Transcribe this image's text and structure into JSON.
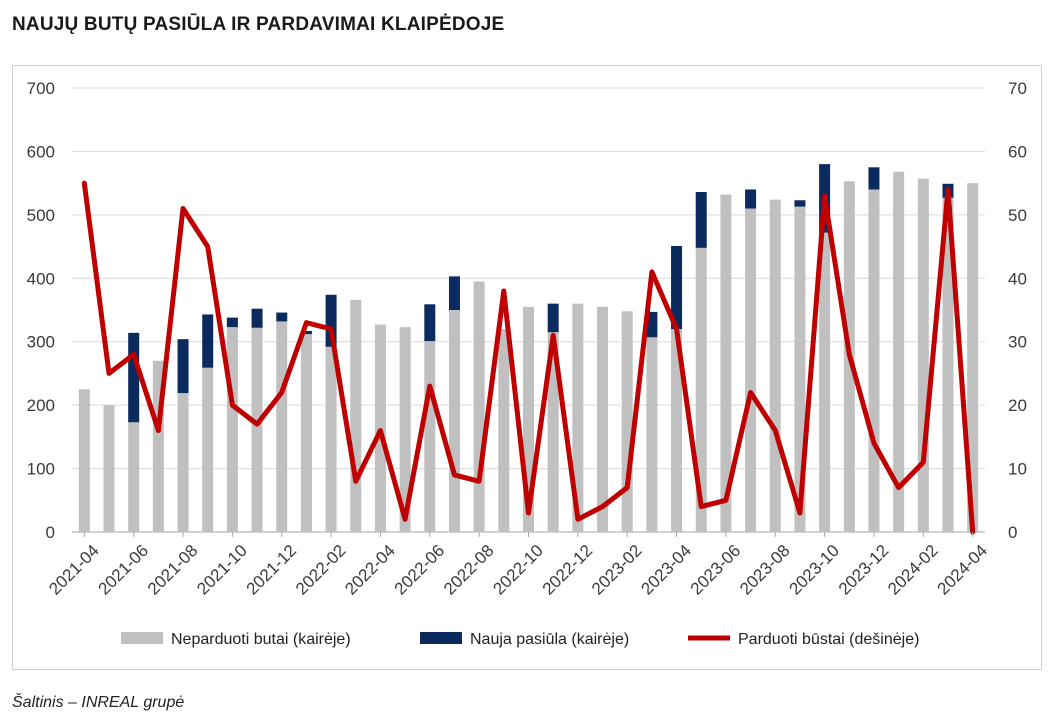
{
  "title": "NAUJŲ BUTŲ PASIŪLA IR PARDAVIMAI KLAIPĖDOJE",
  "source": "Šaltinis – INREAL grupė",
  "colors": {
    "unsold": "#c0c0c0",
    "new_supply": "#0b2a5e",
    "sold": "#c00000",
    "grid": "#d9d9d9"
  },
  "chart_data": {
    "type": "bar",
    "stacked": true,
    "categories": [
      "2021-04",
      "2021-05",
      "2021-06",
      "2021-07",
      "2021-08",
      "2021-09",
      "2021-10",
      "2021-11",
      "2021-12",
      "2022-01",
      "2022-02",
      "2022-03",
      "2022-04",
      "2022-05",
      "2022-06",
      "2022-07",
      "2022-08",
      "2022-09",
      "2022-10",
      "2022-11",
      "2022-12",
      "2023-01",
      "2023-02",
      "2023-03",
      "2023-04",
      "2023-05",
      "2023-06",
      "2023-07",
      "2023-08",
      "2023-09",
      "2023-10",
      "2023-11",
      "2023-12",
      "2024-01",
      "2024-02",
      "2024-03",
      "2024-04"
    ],
    "x_tick_labels": [
      "2021-04",
      "2021-06",
      "2021-08",
      "2021-10",
      "2021-12",
      "2022-02",
      "2022-04",
      "2022-06",
      "2022-08",
      "2022-10",
      "2022-12",
      "2023-02",
      "2023-04",
      "2023-06",
      "2023-08",
      "2023-10",
      "2023-12",
      "2024-02",
      "2024-04"
    ],
    "series": [
      {
        "name": "Neparduoti butai (kairėje)",
        "kind": "bar",
        "axis": "left",
        "values": [
          225,
          200,
          173,
          270,
          219,
          259,
          323,
          322,
          332,
          312,
          292,
          366,
          327,
          323,
          301,
          350,
          395,
          320,
          355,
          315,
          360,
          355,
          348,
          307,
          320,
          448,
          532,
          510,
          524,
          513,
          472,
          553,
          540,
          568,
          557,
          527,
          550
        ]
      },
      {
        "name": "Nauja pasiūla (kairėje)",
        "kind": "bar",
        "axis": "left",
        "values": [
          0,
          0,
          141,
          0,
          85,
          84,
          15,
          30,
          14,
          5,
          82,
          0,
          0,
          0,
          58,
          53,
          0,
          0,
          0,
          45,
          0,
          0,
          0,
          40,
          131,
          88,
          0,
          30,
          0,
          10,
          108,
          0,
          35,
          0,
          0,
          22,
          0
        ]
      },
      {
        "name": "Parduoti būstai (dešinėje)",
        "kind": "line",
        "axis": "right",
        "values": [
          55,
          25,
          28,
          16,
          51,
          45,
          20,
          17,
          22,
          33,
          32,
          8,
          16,
          2,
          23,
          9,
          8,
          38,
          3,
          31,
          2,
          4,
          7,
          41,
          32,
          4,
          5,
          22,
          16,
          3,
          53,
          28,
          14,
          7,
          11,
          54,
          0
        ]
      }
    ],
    "y_left": {
      "ylim": [
        0,
        700
      ],
      "ticks": [
        "0",
        "100",
        "200",
        "300",
        "400",
        "500",
        "600",
        "700"
      ]
    },
    "y_right": {
      "ylim": [
        0,
        70
      ],
      "ticks": [
        "0",
        "10",
        "20",
        "30",
        "40",
        "50",
        "60",
        "70"
      ]
    },
    "grid": true,
    "legend_placement": "bottom"
  }
}
